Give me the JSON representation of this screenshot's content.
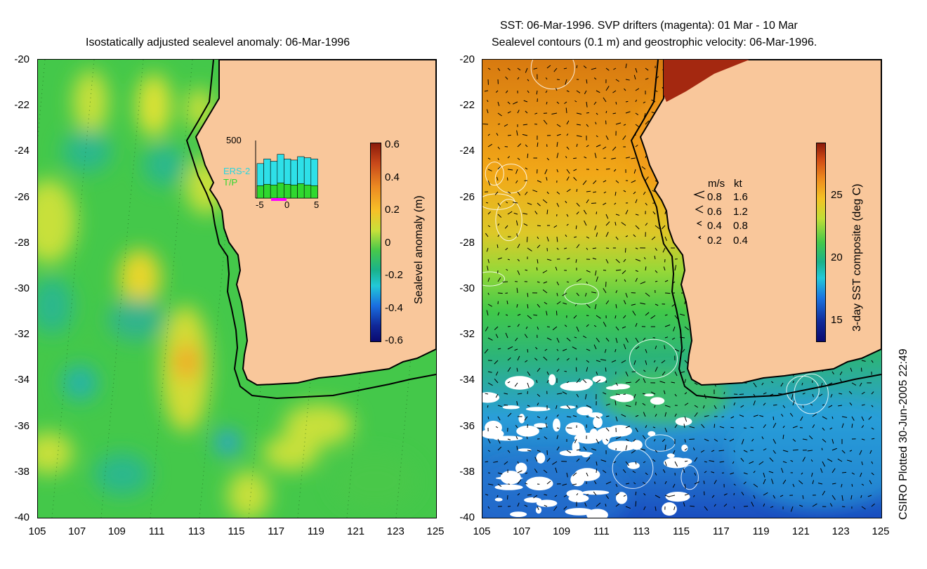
{
  "colors": {
    "land": "#f9c79b",
    "coast": "#000000",
    "ocean_green": "#3fc64a"
  },
  "left_panel": {
    "title": "Isostatically adjusted sealevel anomaly: 06-Mar-1996",
    "colorbar": {
      "label": "Sealevel anomaly (m)",
      "ticks": [
        "0.6",
        "0.4",
        "0.2",
        "0",
        "-0.2",
        "-0.4",
        "-0.6"
      ],
      "range": [
        -0.6,
        0.6
      ]
    },
    "inset": {
      "ymax": "500",
      "xticks": [
        "-5",
        "0",
        "5"
      ],
      "series": [
        "ERS-2",
        "T/P"
      ],
      "ers2": [
        150,
        170,
        160,
        190,
        170,
        165,
        180,
        175,
        170
      ],
      "tp": [
        90,
        100,
        95,
        110,
        100,
        95,
        105,
        95,
        90
      ]
    }
  },
  "right_panel": {
    "title_line1": "SST: 06-Mar-1996. SVP drifters (magenta): 01 Mar - 10 Mar",
    "title_line2": "Sealevel contours (0.1 m) and geostrophic velocity: 06-Mar-1996.",
    "colorbar": {
      "label": "3-day SST composite (deg C)",
      "ticks": [
        "25",
        "20",
        "15"
      ],
      "range": [
        13,
        29
      ]
    },
    "speed_legend": {
      "header_ms": "m/s",
      "header_kt": "kt",
      "rows": [
        {
          "ms": "0.8",
          "kt": "1.6"
        },
        {
          "ms": "0.6",
          "kt": "1.2"
        },
        {
          "ms": "0.4",
          "kt": "0.8"
        },
        {
          "ms": "0.2",
          "kt": "0.4"
        }
      ]
    }
  },
  "axes": {
    "y_ticks": [
      "-20",
      "-22",
      "-24",
      "-26",
      "-28",
      "-30",
      "-32",
      "-34",
      "-36",
      "-38",
      "-40"
    ],
    "x_ticks": [
      "105",
      "107",
      "109",
      "111",
      "113",
      "115",
      "117",
      "119",
      "121",
      "123",
      "125"
    ],
    "lon_range": [
      105,
      125
    ],
    "lat_range": [
      -40,
      -20
    ]
  },
  "side_note": "CSIRO Plotted 30-Jun-2005 22:49"
}
